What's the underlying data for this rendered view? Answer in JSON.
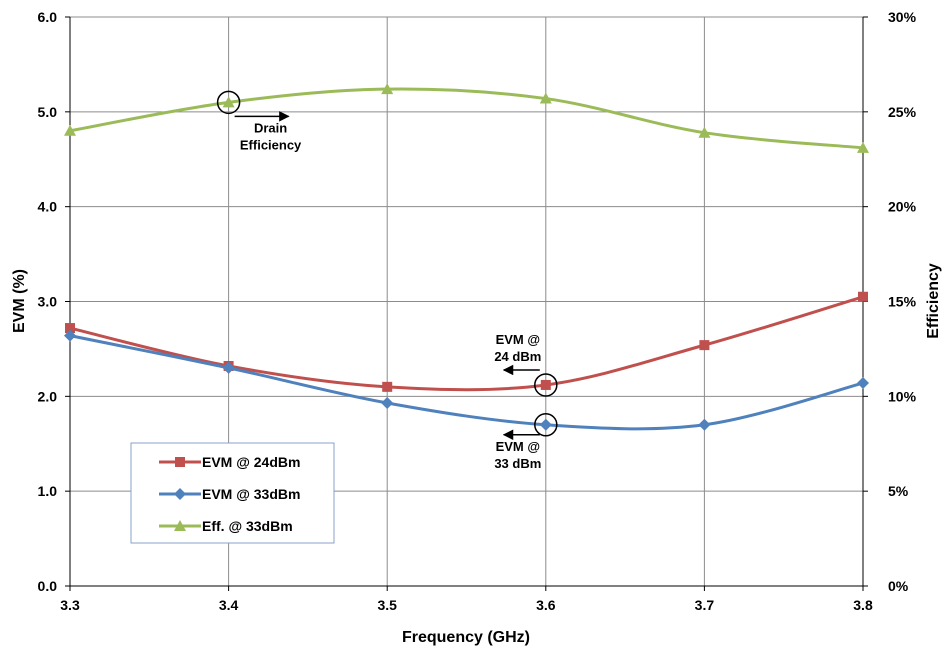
{
  "chart_data": {
    "type": "line",
    "xlabel": "Frequency (GHz)",
    "ylabel": "EVM (%)",
    "y2label": "Efficiency",
    "xlim": [
      3.3,
      3.8
    ],
    "xticks": [
      "3.3",
      "3.4",
      "3.5",
      "3.6",
      "3.7",
      "3.8"
    ],
    "ylim": [
      0,
      6
    ],
    "yticks": [
      "0.0",
      "1.0",
      "2.0",
      "3.0",
      "4.0",
      "5.0",
      "6.0"
    ],
    "y2lim": [
      0,
      30
    ],
    "y2ticks": [
      "0%",
      "5%",
      "10%",
      "15%",
      "20%",
      "25%",
      "30%"
    ],
    "grid": true,
    "legend_placement": "bottom-left",
    "series": [
      {
        "name": "EVM @ 24dBm",
        "axis": "left",
        "marker": "square",
        "color": "#C0504D",
        "x": [
          3.3,
          3.4,
          3.5,
          3.6,
          3.7,
          3.8
        ],
        "y": [
          2.72,
          2.32,
          2.1,
          2.12,
          2.54,
          3.05
        ]
      },
      {
        "name": "EVM @ 33dBm",
        "axis": "left",
        "marker": "diamond",
        "color": "#4F81BD",
        "x": [
          3.3,
          3.4,
          3.5,
          3.6,
          3.7,
          3.8
        ],
        "y": [
          2.64,
          2.3,
          1.93,
          1.7,
          1.7,
          2.14
        ]
      },
      {
        "name": "Eff. @ 33dBm",
        "axis": "right",
        "marker": "triangle",
        "color": "#9BBB59",
        "x": [
          3.3,
          3.4,
          3.5,
          3.6,
          3.7,
          3.8
        ],
        "y": [
          24.0,
          25.5,
          26.2,
          25.7,
          23.9,
          23.1
        ]
      }
    ],
    "annotations": [
      {
        "lines": [
          "Drain",
          "Efficiency"
        ],
        "series": 2,
        "x": 3.4,
        "arrow": "right"
      },
      {
        "lines": [
          "EVM @",
          "24 dBm"
        ],
        "series": 0,
        "x": 3.6,
        "arrow": "left"
      },
      {
        "lines": [
          "EVM @",
          "33 dBm"
        ],
        "series": 1,
        "x": 3.6,
        "arrow": "left"
      }
    ]
  }
}
